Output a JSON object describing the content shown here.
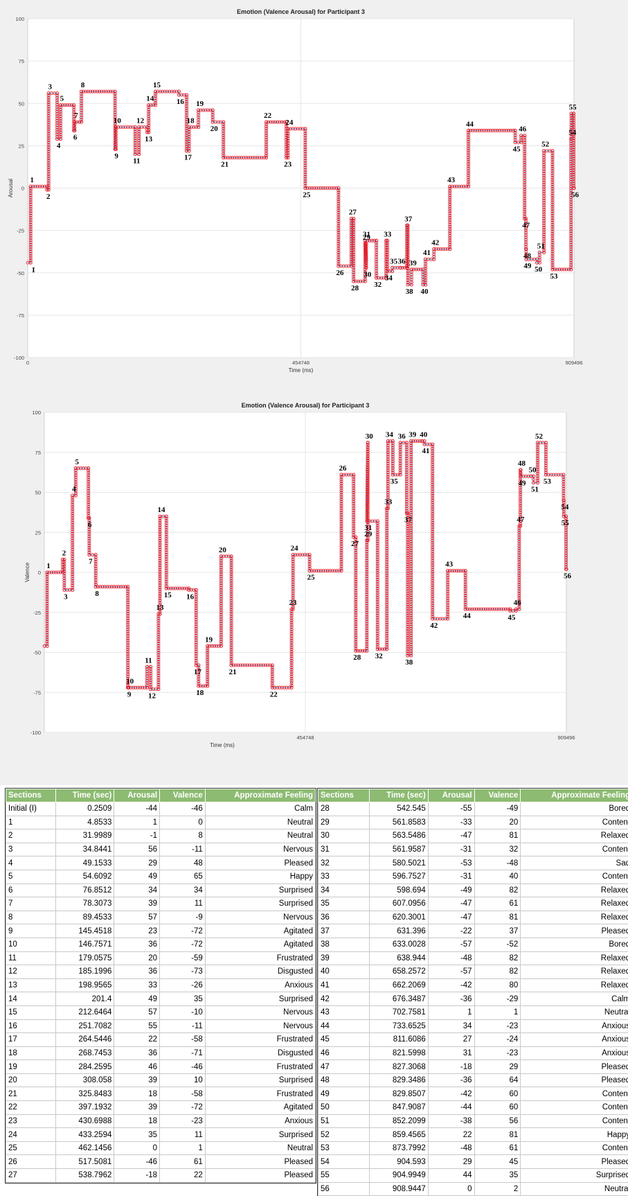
{
  "chart_data": [
    {
      "type": "line",
      "title": "Emotion (Valence Arousal) for Participant 3",
      "xlabel": "Time (ms)",
      "ylabel": "Arousal",
      "xlim": [
        0,
        909496
      ],
      "ylim": [
        -100,
        100
      ],
      "xticks": [
        "0",
        "454748",
        "909496"
      ],
      "yticks": [
        "100",
        "75",
        "50",
        "25",
        "0",
        "-25",
        "-50",
        "-75",
        "-100"
      ],
      "grid": true,
      "line_color": "#4a90d9",
      "marker_color": "#e8141c",
      "annotation_labels": [
        "1",
        "2",
        "3",
        "4",
        "5",
        "6",
        "7",
        "8",
        "9",
        "10",
        "11",
        "12",
        "13",
        "14",
        "15",
        "16",
        "17",
        "18",
        "19",
        "20",
        "21",
        "22",
        "23",
        "24",
        "25",
        "26",
        "27",
        "28",
        "29",
        "30",
        "31",
        "32",
        "33",
        "34",
        "35",
        "36",
        "37",
        "38",
        "39",
        "40",
        "41",
        "42",
        "43",
        "44",
        "45",
        "46",
        "47",
        "48",
        "49",
        "50",
        "51",
        "52",
        "53",
        "54",
        "55",
        "56"
      ],
      "initial_label": "I",
      "series": [
        {
          "x": [
            250.9,
            4853.3,
            31998.9,
            34844.1,
            49153.3,
            54609.2,
            76851.2,
            78307.3,
            89453.3,
            145451.8,
            146757.1,
            179057.5,
            185199.6,
            198956.5,
            201400,
            212646.4,
            251708.2,
            264544.6,
            268745.3,
            284259.5,
            308058,
            325848.3,
            397193.2,
            430698.8,
            433259.4,
            462145.6,
            517508.1,
            538796.2,
            542545,
            561858.3,
            563548.6,
            561958.7,
            580502.1,
            596752.7,
            598694,
            607095.6,
            620300.1,
            631396,
            633002.8,
            638944,
            658257.2,
            662206.9,
            676348.7,
            702758.1,
            733652.5,
            811608.6,
            821599.8,
            827306.8,
            829348.6,
            829850.7,
            847908.7,
            852209.9,
            859456.5,
            873799.2,
            904593,
            904994.9,
            908944.7
          ],
          "y": [
            -44,
            1,
            -1,
            56,
            29,
            49,
            34,
            39,
            57,
            23,
            36,
            20,
            36,
            33,
            49,
            57,
            55,
            22,
            36,
            46,
            39,
            18,
            39,
            18,
            35,
            0,
            -46,
            -18,
            -55,
            -33,
            -47,
            -31,
            -53,
            -31,
            -49,
            -47,
            -47,
            -22,
            -57,
            -48,
            -57,
            -42,
            -36,
            1,
            34,
            27,
            31,
            -18,
            -36,
            -42,
            -44,
            -38,
            22,
            -48,
            29,
            44,
            0
          ]
        }
      ]
    },
    {
      "type": "line",
      "title": "Emotion (Valence Arousal) for Participant 3",
      "xlabel": "Time (ms)",
      "ylabel": "Valence",
      "xlim": [
        0,
        909496
      ],
      "ylim": [
        -100,
        100
      ],
      "xticks": [
        "454748",
        "909496"
      ],
      "yticks": [
        "100",
        "75",
        "50",
        "25",
        "0",
        "-25",
        "-50",
        "-75",
        "-100"
      ],
      "grid": true,
      "line_color": "#4a90d9",
      "marker_color": "#e8141c",
      "annotation_labels": [
        "1",
        "2",
        "3",
        "4",
        "5",
        "6",
        "7",
        "8",
        "9",
        "10",
        "11",
        "12",
        "13",
        "14",
        "15",
        "16",
        "17",
        "18",
        "19",
        "20",
        "21",
        "22",
        "23",
        "24",
        "25",
        "26",
        "27",
        "28",
        "29",
        "30",
        "31",
        "32",
        "33",
        "34",
        "35",
        "36",
        "37",
        "38",
        "39",
        "40",
        "41",
        "42",
        "43",
        "44",
        "45",
        "46",
        "47",
        "48",
        "49",
        "50",
        "51",
        "52",
        "53",
        "54",
        "55",
        "56"
      ],
      "series": [
        {
          "x": [
            250.9,
            4853.3,
            31998.9,
            34844.1,
            49153.3,
            54609.2,
            76851.2,
            78307.3,
            89453.3,
            145451.8,
            146757.1,
            179057.5,
            185199.6,
            198956.5,
            201400,
            212646.4,
            251708.2,
            264544.6,
            268745.3,
            284259.5,
            308058,
            325848.3,
            397193.2,
            430698.8,
            433259.4,
            462145.6,
            517508.1,
            538796.2,
            542545,
            561858.3,
            563548.6,
            561958.7,
            580502.1,
            596752.7,
            598694,
            607095.6,
            620300.1,
            631396,
            633002.8,
            638944,
            658257.2,
            662206.9,
            676348.7,
            702758.1,
            733652.5,
            811608.6,
            821599.8,
            827306.8,
            829348.6,
            829850.7,
            847908.7,
            852209.9,
            859456.5,
            873799.2,
            904593,
            904994.9,
            908944.7
          ],
          "y": [
            -46,
            0,
            8,
            -11,
            48,
            65,
            34,
            11,
            -9,
            -72,
            -72,
            -59,
            -73,
            -26,
            35,
            -10,
            -11,
            -58,
            -71,
            -46,
            10,
            -58,
            -72,
            -23,
            11,
            1,
            61,
            22,
            -49,
            20,
            81,
            32,
            -48,
            40,
            82,
            61,
            81,
            37,
            -52,
            82,
            82,
            80,
            -29,
            1,
            -23,
            -24,
            -23,
            29,
            64,
            60,
            60,
            56,
            81,
            61,
            45,
            35,
            2
          ]
        }
      ]
    }
  ],
  "table": {
    "headers": [
      "Sections",
      "Time (sec)",
      "Arousal",
      "Valence",
      "Approximate Feeling"
    ],
    "left_rows": [
      [
        "Initial (I)",
        "0.2509",
        "-44",
        "-46",
        "Calm"
      ],
      [
        "1",
        "4.8533",
        "1",
        "0",
        "Neutral"
      ],
      [
        "2",
        "31.9989",
        "-1",
        "8",
        "Neutral"
      ],
      [
        "3",
        "34.8441",
        "56",
        "-11",
        "Nervous"
      ],
      [
        "4",
        "49.1533",
        "29",
        "48",
        "Pleased"
      ],
      [
        "5",
        "54.6092",
        "49",
        "65",
        "Happy"
      ],
      [
        "6",
        "76.8512",
        "34",
        "34",
        "Surprised"
      ],
      [
        "7",
        "78.3073",
        "39",
        "11",
        "Surprised"
      ],
      [
        "8",
        "89.4533",
        "57",
        "-9",
        "Nervous"
      ],
      [
        "9",
        "145.4518",
        "23",
        "-72",
        "Agitated"
      ],
      [
        "10",
        "146.7571",
        "36",
        "-72",
        "Agitated"
      ],
      [
        "11",
        "179.0575",
        "20",
        "-59",
        "Frustrated"
      ],
      [
        "12",
        "185.1996",
        "36",
        "-73",
        "Disgusted"
      ],
      [
        "13",
        "198.9565",
        "33",
        "-26",
        "Anxious"
      ],
      [
        "14",
        "201.4",
        "49",
        "35",
        "Surprised"
      ],
      [
        "15",
        "212.6464",
        "57",
        "-10",
        "Nervous"
      ],
      [
        "16",
        "251.7082",
        "55",
        "-11",
        "Nervous"
      ],
      [
        "17",
        "264.5446",
        "22",
        "-58",
        "Frustrated"
      ],
      [
        "18",
        "268.7453",
        "36",
        "-71",
        "Disgusted"
      ],
      [
        "19",
        "284.2595",
        "46",
        "-46",
        "Frustrated"
      ],
      [
        "20",
        "308.058",
        "39",
        "10",
        "Surprised"
      ],
      [
        "21",
        "325.8483",
        "18",
        "-58",
        "Frustrated"
      ],
      [
        "22",
        "397.1932",
        "39",
        "-72",
        "Agitated"
      ],
      [
        "23",
        "430.6988",
        "18",
        "-23",
        "Anxious"
      ],
      [
        "24",
        "433.2594",
        "35",
        "11",
        "Surprised"
      ],
      [
        "25",
        "462.1456",
        "0",
        "1",
        "Neutral"
      ],
      [
        "26",
        "517.5081",
        "-46",
        "61",
        "Pleased"
      ],
      [
        "27",
        "538.7962",
        "-18",
        "22",
        "Pleased"
      ]
    ],
    "right_rows": [
      [
        "28",
        "542.545",
        "-55",
        "-49",
        "Bored"
      ],
      [
        "29",
        "561.8583",
        "-33",
        "20",
        "Content"
      ],
      [
        "30",
        "563.5486",
        "-47",
        "81",
        "Relaxed"
      ],
      [
        "31",
        "561.9587",
        "-31",
        "32",
        "Content"
      ],
      [
        "32",
        "580.5021",
        "-53",
        "-48",
        "Sad"
      ],
      [
        "33",
        "596.7527",
        "-31",
        "40",
        "Content"
      ],
      [
        "34",
        "598.694",
        "-49",
        "82",
        "Relaxed"
      ],
      [
        "35",
        "607.0956",
        "-47",
        "61",
        "Relaxed"
      ],
      [
        "36",
        "620.3001",
        "-47",
        "81",
        "Relaxed"
      ],
      [
        "37",
        "631.396",
        "-22",
        "37",
        "Pleased"
      ],
      [
        "38",
        "633.0028",
        "-57",
        "-52",
        "Bored"
      ],
      [
        "39",
        "638.944",
        "-48",
        "82",
        "Relaxed"
      ],
      [
        "40",
        "658.2572",
        "-57",
        "82",
        "Relaxed"
      ],
      [
        "41",
        "662.2069",
        "-42",
        "80",
        "Relaxed"
      ],
      [
        "42",
        "676.3487",
        "-36",
        "-29",
        "Calm"
      ],
      [
        "43",
        "702.7581",
        "1",
        "1",
        "Neutral"
      ],
      [
        "44",
        "733.6525",
        "34",
        "-23",
        "Anxious"
      ],
      [
        "45",
        "811.6086",
        "27",
        "-24",
        "Anxious"
      ],
      [
        "46",
        "821.5998",
        "31",
        "-23",
        "Anxious"
      ],
      [
        "47",
        "827.3068",
        "-18",
        "29",
        "Pleased"
      ],
      [
        "48",
        "829.3486",
        "-36",
        "64",
        "Pleased"
      ],
      [
        "49",
        "829.8507",
        "-42",
        "60",
        "Content"
      ],
      [
        "50",
        "847.9087",
        "-44",
        "60",
        "Content"
      ],
      [
        "51",
        "852.2099",
        "-38",
        "56",
        "Content"
      ],
      [
        "52",
        "859.4565",
        "22",
        "81",
        "Happy"
      ],
      [
        "53",
        "873.7992",
        "-48",
        "61",
        "Content"
      ],
      [
        "54",
        "904.593",
        "29",
        "45",
        "Pleased"
      ],
      [
        "55",
        "904.9949",
        "44",
        "35",
        "Surprised"
      ],
      [
        "56",
        "908.9447",
        "0",
        "2",
        "Neutral"
      ]
    ]
  }
}
